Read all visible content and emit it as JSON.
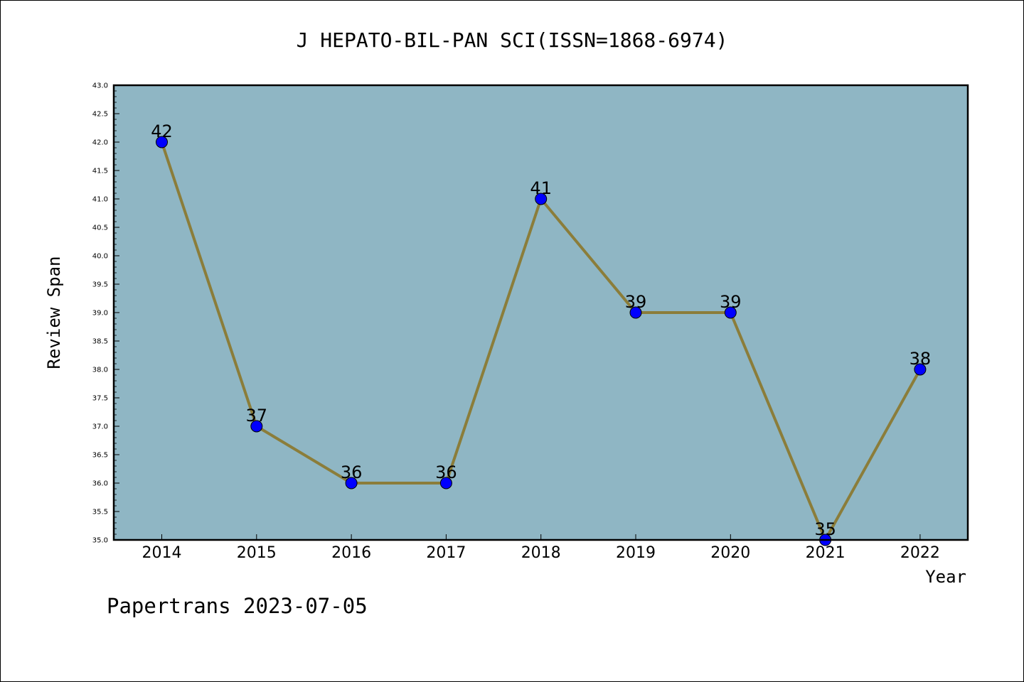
{
  "chart_data": {
    "type": "line",
    "title": "J HEPATO-BIL-PAN SCI(ISSN=1868-6974)",
    "xlabel": "Year",
    "ylabel": "Review Span",
    "categories": [
      "2014",
      "2015",
      "2016",
      "2017",
      "2018",
      "2019",
      "2020",
      "2021",
      "2022"
    ],
    "series": [
      {
        "values": [
          42,
          37,
          36,
          36,
          41,
          39,
          39,
          35,
          38
        ]
      }
    ],
    "data_labels": [
      "42",
      "37",
      "36",
      "36",
      "41",
      "39",
      "39",
      "35",
      "38"
    ],
    "ylim": [
      35.0,
      43.0
    ],
    "yticks": [
      "35.0",
      "35.5",
      "36.0",
      "36.5",
      "37.0",
      "37.5",
      "38.0",
      "38.5",
      "39.0",
      "39.5",
      "40.0",
      "40.5",
      "41.0",
      "41.5",
      "42.0",
      "42.5",
      "43.0"
    ],
    "grid": false,
    "colors": {
      "plot_background": "#8fb6c4",
      "line": "#8b7d3a",
      "marker": "#0000ff"
    }
  },
  "footer": "Papertrans 2023-07-05"
}
